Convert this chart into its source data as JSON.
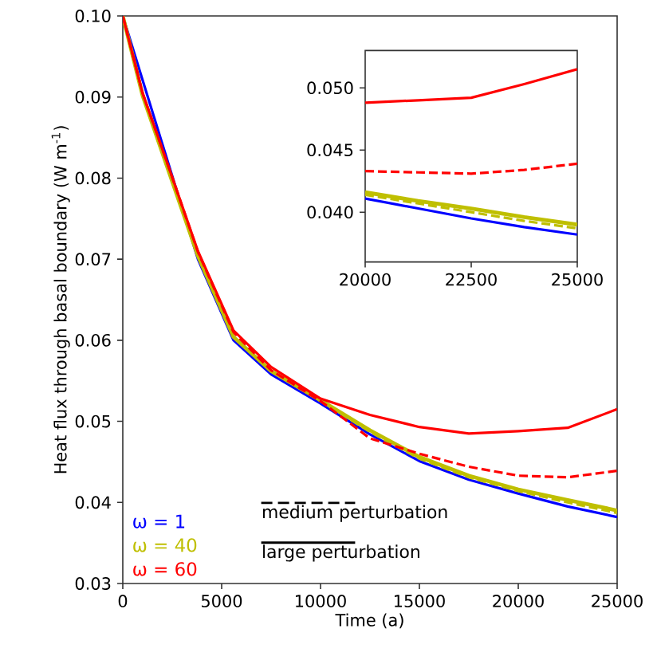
{
  "chart_data": [
    {
      "type": "line",
      "xlabel": "Time (a)",
      "ylabel": "Heat flux through basal boundary (W m$^{-1}$)",
      "x": [
        0,
        1000,
        2400,
        3800,
        5600,
        7500,
        10000,
        12500,
        15000,
        17500,
        20000,
        22500,
        25000
      ],
      "xlim": [
        0,
        25000
      ],
      "ylim": [
        0.03,
        0.1
      ],
      "xticks": [
        0,
        5000,
        10000,
        15000,
        20000,
        25000
      ],
      "yticks": [
        0.03,
        0.04,
        0.05,
        0.06,
        0.07,
        0.08,
        0.09,
        {
          "value": 0.1,
          "label": "0.10"
        }
      ],
      "legend": "bottom left",
      "series": [
        {
          "name": "ω = 1",
          "color": "#0000ff",
          "line_style": "solid",
          "values": [
            0.1,
            null,
            null,
            0.07,
            0.06,
            0.0558,
            0.0522,
            0.0484,
            0.0451,
            0.0428,
            0.0411,
            0.0395,
            0.0382
          ]
        },
        {
          "name": "ω = 40",
          "color": "#bfbf00",
          "line_style": "solid",
          "values": [
            0.1,
            0.0902,
            0.0803,
            0.0704,
            0.0604,
            0.0562,
            0.0526,
            0.0489,
            0.0456,
            0.0433,
            0.0416,
            0.0403,
            0.039
          ]
        },
        {
          "color": "#bfbf00",
          "line_style": "dashed",
          "values": [
            0.1,
            0.0902,
            0.0803,
            0.0704,
            0.0604,
            0.0562,
            0.0525,
            0.0487,
            0.0454,
            0.0431,
            0.0414,
            0.04,
            0.0387
          ]
        },
        {
          "name": "ω = 60",
          "color": "#ff0000",
          "line_style": "solid",
          "values": [
            0.1,
            0.0905,
            0.0808,
            0.071,
            0.0612,
            0.0567,
            0.0528,
            0.0508,
            0.0493,
            0.0485,
            0.0488,
            0.0492,
            0.0515
          ]
        },
        {
          "color": "#ff0000",
          "line_style": "dashed",
          "values": [
            0.1,
            0.0905,
            0.0808,
            0.0709,
            0.061,
            0.0563,
            0.0525,
            0.0479,
            0.046,
            0.0444,
            0.0433,
            0.0431,
            0.0439
          ]
        }
      ],
      "annotations": [
        "medium perturbation",
        "large perturbation"
      ]
    },
    {
      "type": "line",
      "x": [
        20000,
        21250,
        22500,
        23750,
        25000
      ],
      "xlim": [
        20000,
        25000
      ],
      "ylim": [
        0.036,
        0.053
      ],
      "xticks": [
        20000,
        22500,
        25000
      ],
      "yticks": [
        {
          "value": 0.04,
          "label": "0.040"
        },
        {
          "value": 0.045,
          "label": "0.045"
        },
        {
          "value": 0.05,
          "label": "0.050"
        }
      ],
      "series": [
        {
          "color": "#0000ff",
          "line_style": "solid",
          "values": [
            0.0411,
            0.0403,
            0.0395,
            0.0388,
            0.0382
          ]
        },
        {
          "color": "#bfbf00",
          "line_style": "solid",
          "values": [
            0.0416,
            0.0409,
            0.0403,
            0.0396,
            0.039
          ]
        },
        {
          "color": "#bfbf00",
          "line_style": "dashed",
          "values": [
            0.0414,
            0.0407,
            0.04,
            0.0393,
            0.0387
          ]
        },
        {
          "color": "#ff0000",
          "line_style": "solid",
          "values": [
            0.0488,
            0.049,
            0.0492,
            0.0503,
            0.0515
          ]
        },
        {
          "color": "#ff0000",
          "line_style": "dashed",
          "values": [
            0.0433,
            0.0432,
            0.0431,
            0.0434,
            0.0439
          ]
        }
      ]
    }
  ]
}
